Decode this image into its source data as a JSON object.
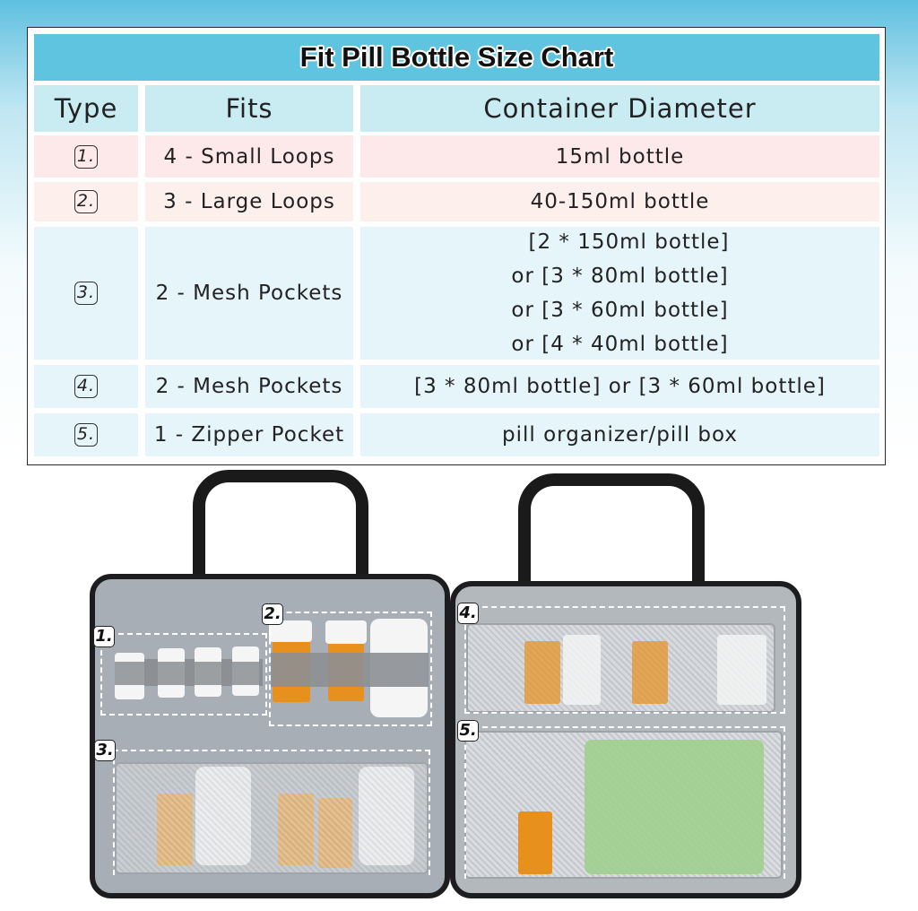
{
  "table": {
    "title": "Fit Pill Bottle Size Chart",
    "headers": [
      "Type",
      "Fits",
      "Container Diameter"
    ],
    "rows": [
      {
        "type": "1.",
        "fits": "4 - Small Loops",
        "diameter": [
          "15ml bottle"
        ]
      },
      {
        "type": "2.",
        "fits": "3 - Large Loops",
        "diameter": [
          "40-150ml bottle"
        ]
      },
      {
        "type": "3.",
        "fits": "2 - Mesh Pockets",
        "diameter": [
          "[2 * 150ml bottle]",
          "or [3 * 80ml bottle]",
          "or [3 * 60ml bottle]",
          "or [4 * 40ml bottle]"
        ]
      },
      {
        "type": "4.",
        "fits": "2 - Mesh Pockets",
        "diameter": [
          "[3 * 80ml bottle] or [3 * 60ml bottle]"
        ]
      },
      {
        "type": "5.",
        "fits": "1 - Zipper Pocket",
        "diameter": [
          "pill organizer/pill box"
        ]
      }
    ],
    "colors": {
      "title_bg": "#5ec4e0",
      "header_bg": "#c9ebf2",
      "pink_row": "#fde9ea",
      "blue_row": "#e6f5fa"
    }
  },
  "photo": {
    "labels": [
      "1.",
      "2.",
      "3.",
      "4.",
      "5."
    ]
  }
}
